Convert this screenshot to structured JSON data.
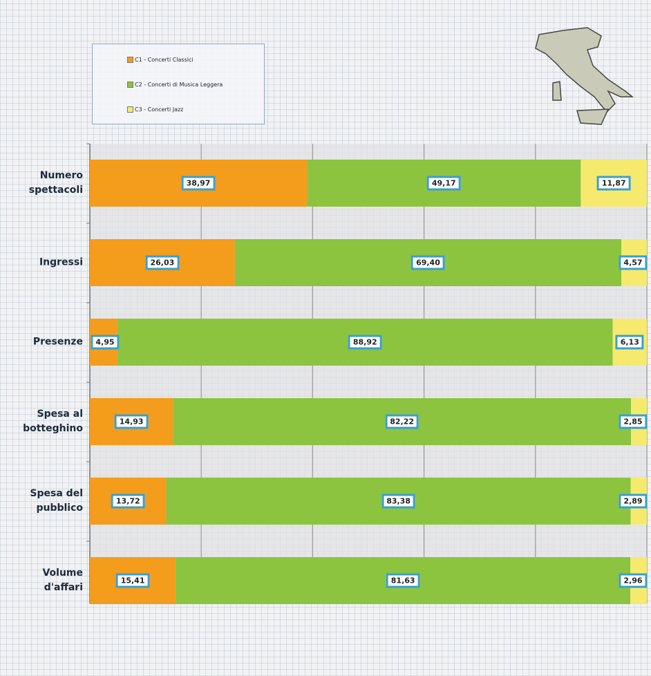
{
  "chart_data": {
    "type": "bar",
    "orientation": "horizontal",
    "stacked": true,
    "categories": [
      "Numero spettacoli",
      "Ingressi",
      "Presenze",
      "Spesa al botteghino",
      "Spesa del pubblico",
      "Volume d'affari"
    ],
    "series": [
      {
        "name": "C1 - Concerti Classici",
        "color": "#f49c1c",
        "values": [
          38.97,
          26.03,
          4.95,
          14.93,
          13.72,
          15.41
        ],
        "value_labels": [
          "38,97",
          "26,03",
          "4,95",
          "14,93",
          "13,72",
          "15,41"
        ]
      },
      {
        "name": "C2 - Concerti di Musica Leggera",
        "color": "#8cc43f",
        "values": [
          49.17,
          69.4,
          88.92,
          82.22,
          83.38,
          81.63
        ],
        "value_labels": [
          "49,17",
          "69,40",
          "88,92",
          "82,22",
          "83,38",
          "81,63"
        ]
      },
      {
        "name": "C3 - Concerti Jazz",
        "color": "#f6ea6e",
        "values": [
          11.87,
          4.57,
          6.13,
          2.85,
          2.89,
          2.96
        ],
        "value_labels": [
          "11,87",
          "4,57",
          "6,13",
          "2,85",
          "2,89",
          "2,96"
        ]
      }
    ],
    "xlim": [
      0,
      100
    ],
    "xticks": [
      0,
      20,
      40,
      60,
      80,
      100
    ],
    "grid": true,
    "legend": "top-left"
  }
}
